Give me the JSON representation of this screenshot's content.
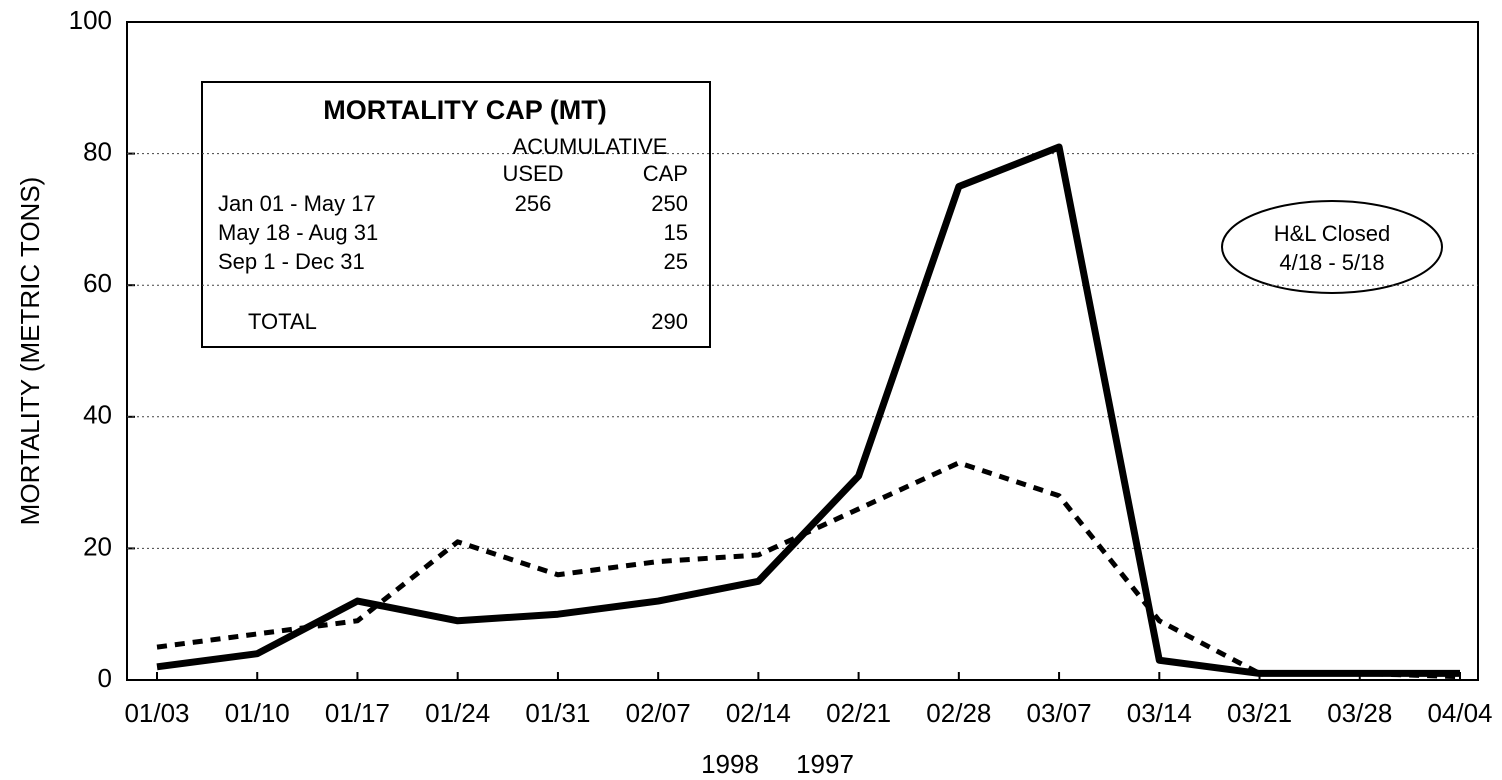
{
  "chart_data": {
    "type": "line",
    "y_label": "MORTALITY (METRIC TONS)",
    "categories": [
      "01/03",
      "01/10",
      "01/17",
      "01/24",
      "01/31",
      "02/07",
      "02/14",
      "02/21",
      "02/28",
      "03/07",
      "03/14",
      "03/21",
      "03/28",
      "04/04"
    ],
    "series": [
      {
        "name": "1998",
        "color": "#000000",
        "dash": "solid",
        "values": [
          2,
          4,
          12,
          9,
          10,
          12,
          15,
          31,
          75,
          81,
          3,
          1,
          1,
          1
        ]
      },
      {
        "name": "1997",
        "color": "#000000",
        "dash": "dotted",
        "values": [
          5,
          7,
          9,
          21,
          16,
          18,
          19,
          26,
          33,
          28,
          9,
          1,
          1,
          0.5
        ]
      }
    ],
    "ylim": [
      0,
      100
    ],
    "yticks": [
      0,
      20,
      40,
      60,
      80,
      100
    ],
    "grid": true,
    "cap_table": {
      "title": "MORTALITY CAP (MT)",
      "header_top": "ACUMULATIVE",
      "headers": [
        "USED",
        "CAP"
      ],
      "rows": [
        [
          "Jan 01 - May 17",
          256,
          250
        ],
        [
          "May 18 - Aug 31",
          null,
          15
        ],
        [
          "Sep 1 - Dec 31",
          null,
          25
        ]
      ],
      "total": [
        "TOTAL",
        290
      ]
    },
    "annotation": [
      "H&L Closed",
      "4/18 - 5/18"
    ]
  }
}
